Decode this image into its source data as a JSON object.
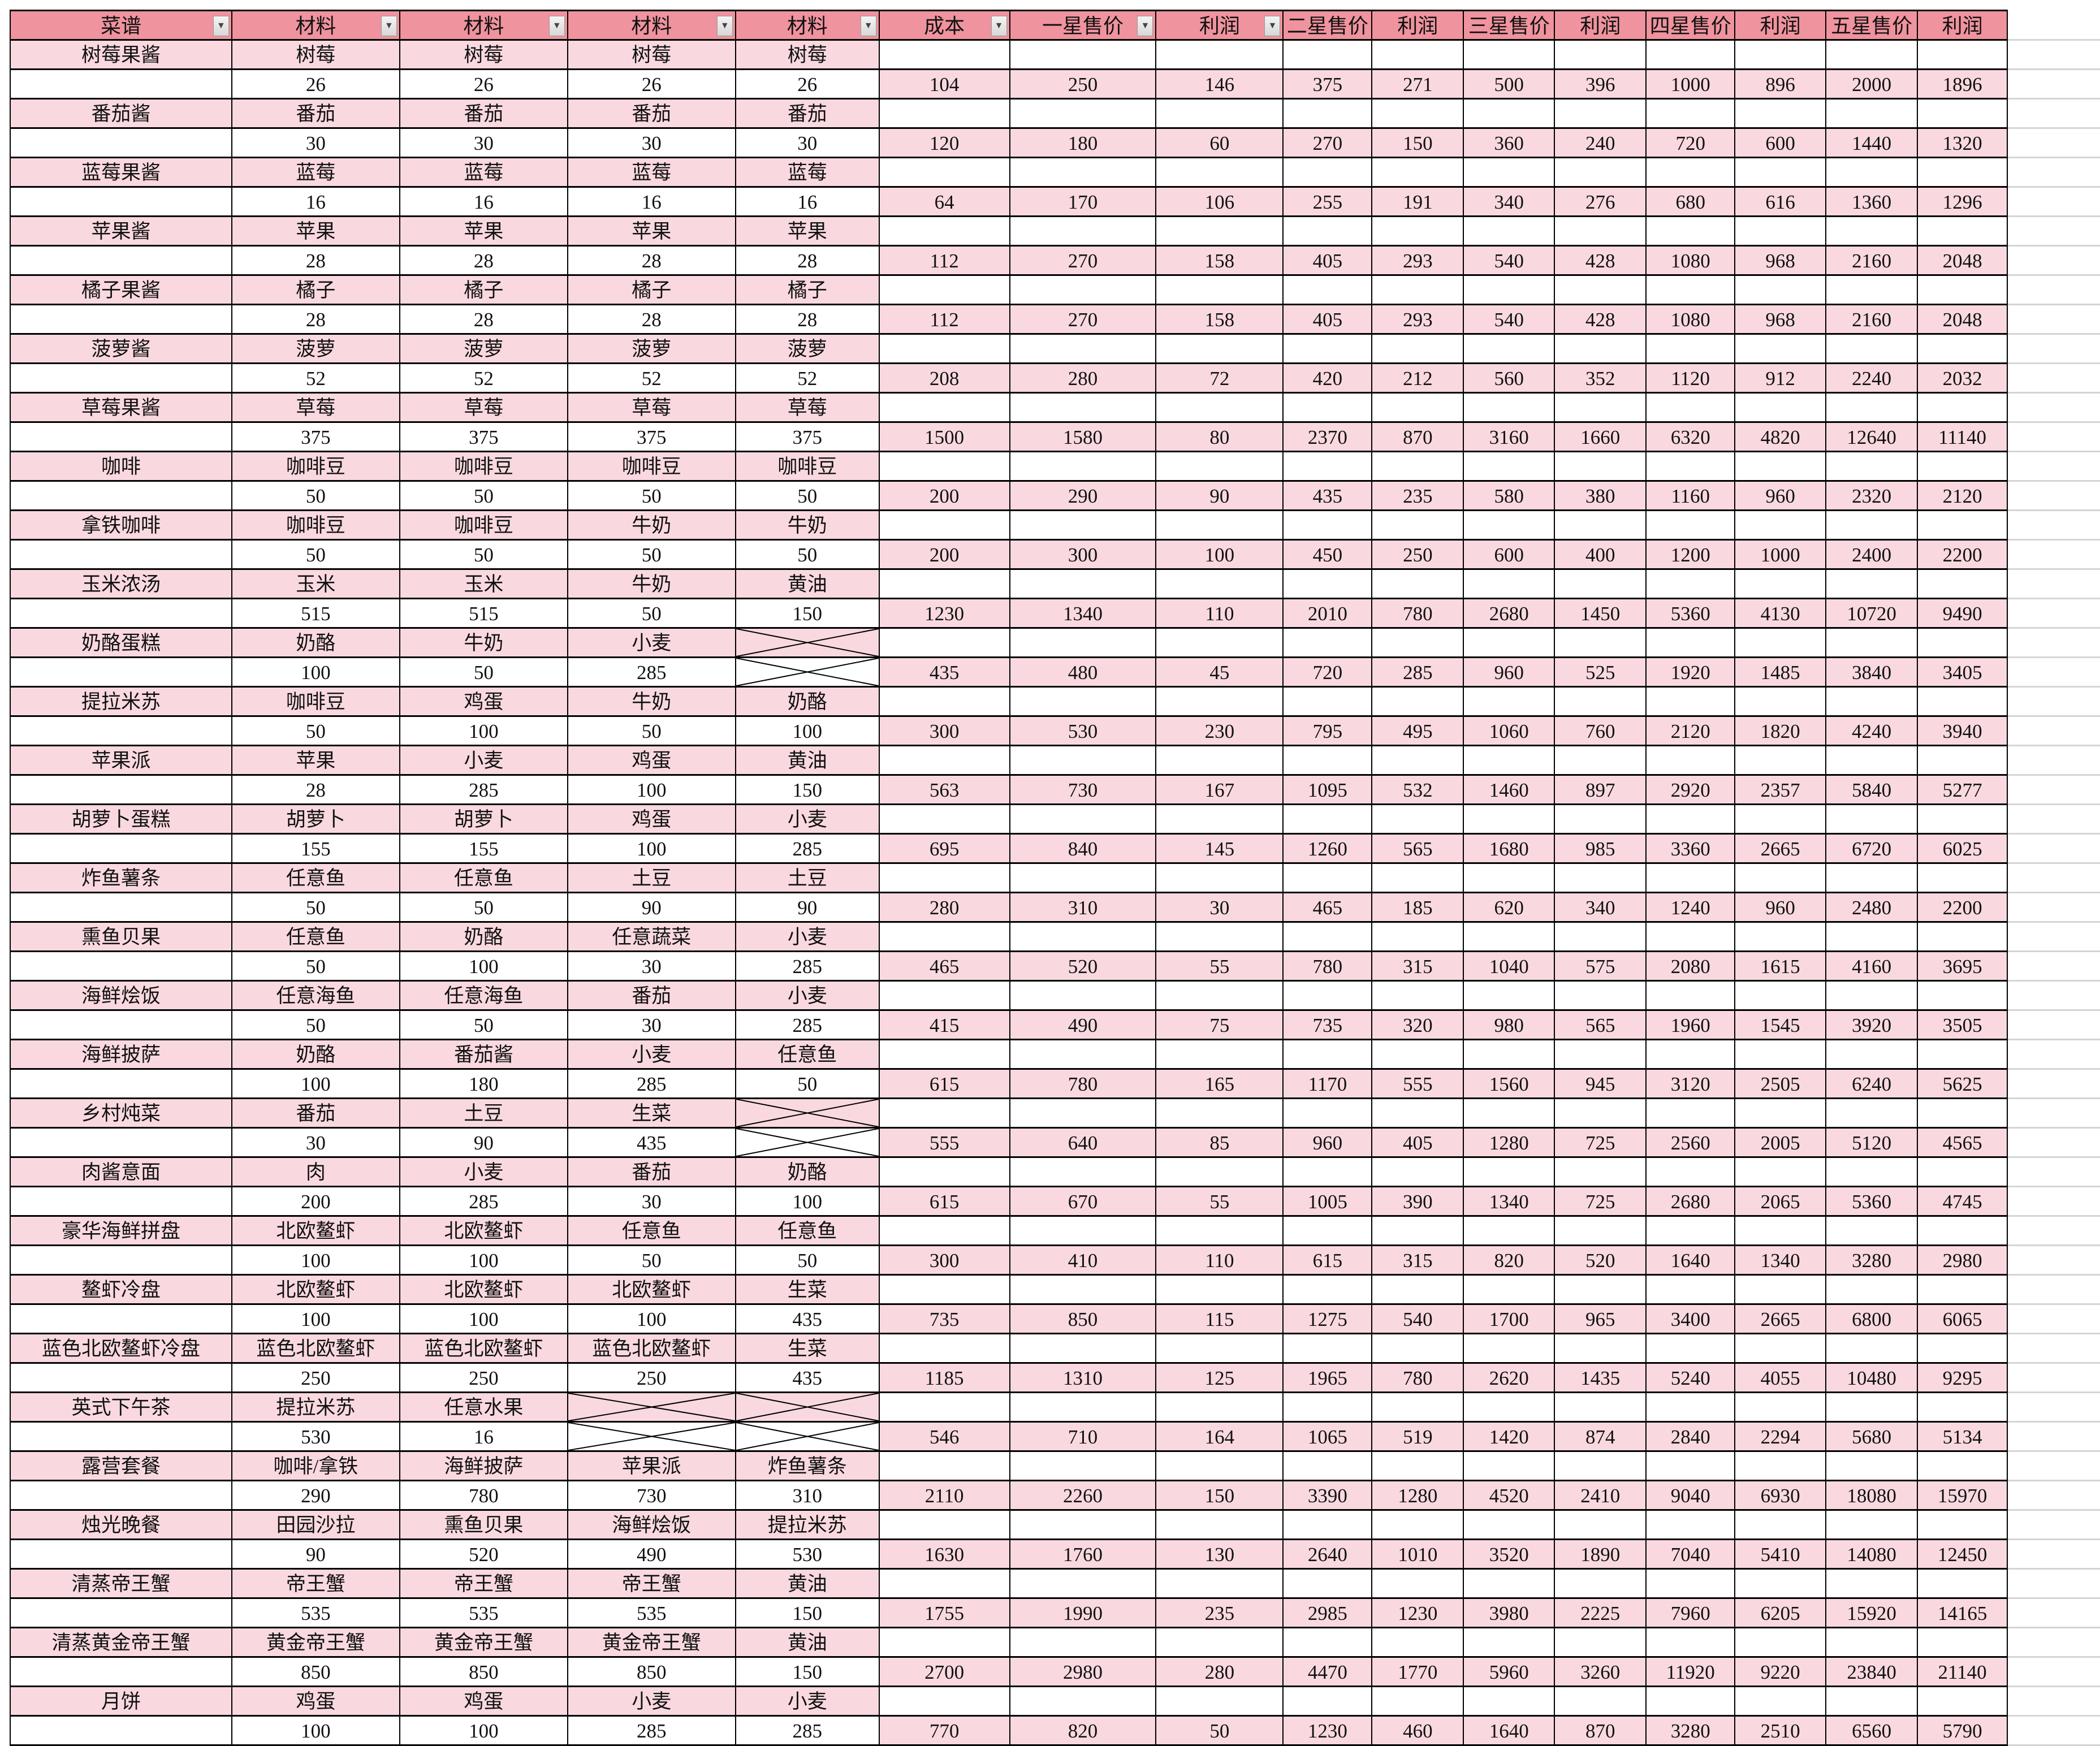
{
  "colors": {
    "header": "#ef939e",
    "row_pink": "#f9d9df",
    "border": "#000000"
  },
  "headers": [
    "菜谱",
    "材料",
    "材料",
    "材料",
    "材料",
    "成本",
    "一星售价",
    "利润",
    "二星售价",
    "利润",
    "三星售价",
    "利润",
    "四星售价",
    "利润",
    "五星售价",
    "利润"
  ],
  "filter_columns": 8,
  "recipes": [
    {
      "name": "树莓果酱",
      "ingredients": [
        "树莓",
        "树莓",
        "树莓",
        "树莓"
      ],
      "quantities": [
        "26",
        "26",
        "26",
        "26"
      ],
      "values": [
        "104",
        "250",
        "146",
        "375",
        "271",
        "500",
        "396",
        "1000",
        "896",
        "2000",
        "1896"
      ]
    },
    {
      "name": "番茄酱",
      "ingredients": [
        "番茄",
        "番茄",
        "番茄",
        "番茄"
      ],
      "quantities": [
        "30",
        "30",
        "30",
        "30"
      ],
      "values": [
        "120",
        "180",
        "60",
        "270",
        "150",
        "360",
        "240",
        "720",
        "600",
        "1440",
        "1320"
      ]
    },
    {
      "name": "蓝莓果酱",
      "ingredients": [
        "蓝莓",
        "蓝莓",
        "蓝莓",
        "蓝莓"
      ],
      "quantities": [
        "16",
        "16",
        "16",
        "16"
      ],
      "values": [
        "64",
        "170",
        "106",
        "255",
        "191",
        "340",
        "276",
        "680",
        "616",
        "1360",
        "1296"
      ]
    },
    {
      "name": "苹果酱",
      "ingredients": [
        "苹果",
        "苹果",
        "苹果",
        "苹果"
      ],
      "quantities": [
        "28",
        "28",
        "28",
        "28"
      ],
      "values": [
        "112",
        "270",
        "158",
        "405",
        "293",
        "540",
        "428",
        "1080",
        "968",
        "2160",
        "2048"
      ]
    },
    {
      "name": "橘子果酱",
      "ingredients": [
        "橘子",
        "橘子",
        "橘子",
        "橘子"
      ],
      "quantities": [
        "28",
        "28",
        "28",
        "28"
      ],
      "values": [
        "112",
        "270",
        "158",
        "405",
        "293",
        "540",
        "428",
        "1080",
        "968",
        "2160",
        "2048"
      ]
    },
    {
      "name": "菠萝酱",
      "ingredients": [
        "菠萝",
        "菠萝",
        "菠萝",
        "菠萝"
      ],
      "quantities": [
        "52",
        "52",
        "52",
        "52"
      ],
      "values": [
        "208",
        "280",
        "72",
        "420",
        "212",
        "560",
        "352",
        "1120",
        "912",
        "2240",
        "2032"
      ]
    },
    {
      "name": "草莓果酱",
      "ingredients": [
        "草莓",
        "草莓",
        "草莓",
        "草莓"
      ],
      "quantities": [
        "375",
        "375",
        "375",
        "375"
      ],
      "values": [
        "1500",
        "1580",
        "80",
        "2370",
        "870",
        "3160",
        "1660",
        "6320",
        "4820",
        "12640",
        "11140"
      ]
    },
    {
      "name": "咖啡",
      "ingredients": [
        "咖啡豆",
        "咖啡豆",
        "咖啡豆",
        "咖啡豆"
      ],
      "quantities": [
        "50",
        "50",
        "50",
        "50"
      ],
      "values": [
        "200",
        "290",
        "90",
        "435",
        "235",
        "580",
        "380",
        "1160",
        "960",
        "2320",
        "2120"
      ]
    },
    {
      "name": "拿铁咖啡",
      "ingredients": [
        "咖啡豆",
        "咖啡豆",
        "牛奶",
        "牛奶"
      ],
      "quantities": [
        "50",
        "50",
        "50",
        "50"
      ],
      "values": [
        "200",
        "300",
        "100",
        "450",
        "250",
        "600",
        "400",
        "1200",
        "1000",
        "2400",
        "2200"
      ]
    },
    {
      "name": "玉米浓汤",
      "ingredients": [
        "玉米",
        "玉米",
        "牛奶",
        "黄油"
      ],
      "quantities": [
        "515",
        "515",
        "50",
        "150"
      ],
      "values": [
        "1230",
        "1340",
        "110",
        "2010",
        "780",
        "2680",
        "1450",
        "5360",
        "4130",
        "10720",
        "9490"
      ]
    },
    {
      "name": "奶酪蛋糕",
      "ingredients": [
        "奶酪",
        "牛奶",
        "小麦",
        null
      ],
      "quantities": [
        "100",
        "50",
        "285",
        null
      ],
      "values": [
        "435",
        "480",
        "45",
        "720",
        "285",
        "960",
        "525",
        "1920",
        "1485",
        "3840",
        "3405"
      ]
    },
    {
      "name": "提拉米苏",
      "ingredients": [
        "咖啡豆",
        "鸡蛋",
        "牛奶",
        "奶酪"
      ],
      "quantities": [
        "50",
        "100",
        "50",
        "100"
      ],
      "values": [
        "300",
        "530",
        "230",
        "795",
        "495",
        "1060",
        "760",
        "2120",
        "1820",
        "4240",
        "3940"
      ]
    },
    {
      "name": "苹果派",
      "ingredients": [
        "苹果",
        "小麦",
        "鸡蛋",
        "黄油"
      ],
      "quantities": [
        "28",
        "285",
        "100",
        "150"
      ],
      "values": [
        "563",
        "730",
        "167",
        "1095",
        "532",
        "1460",
        "897",
        "2920",
        "2357",
        "5840",
        "5277"
      ]
    },
    {
      "name": "胡萝卜蛋糕",
      "ingredients": [
        "胡萝卜",
        "胡萝卜",
        "鸡蛋",
        "小麦"
      ],
      "quantities": [
        "155",
        "155",
        "100",
        "285"
      ],
      "values": [
        "695",
        "840",
        "145",
        "1260",
        "565",
        "1680",
        "985",
        "3360",
        "2665",
        "6720",
        "6025"
      ]
    },
    {
      "name": "炸鱼薯条",
      "ingredients": [
        "任意鱼",
        "任意鱼",
        "土豆",
        "土豆"
      ],
      "quantities": [
        "50",
        "50",
        "90",
        "90"
      ],
      "values": [
        "280",
        "310",
        "30",
        "465",
        "185",
        "620",
        "340",
        "1240",
        "960",
        "2480",
        "2200"
      ]
    },
    {
      "name": "熏鱼贝果",
      "ingredients": [
        "任意鱼",
        "奶酪",
        "任意蔬菜",
        "小麦"
      ],
      "quantities": [
        "50",
        "100",
        "30",
        "285"
      ],
      "values": [
        "465",
        "520",
        "55",
        "780",
        "315",
        "1040",
        "575",
        "2080",
        "1615",
        "4160",
        "3695"
      ]
    },
    {
      "name": "海鲜烩饭",
      "ingredients": [
        "任意海鱼",
        "任意海鱼",
        "番茄",
        "小麦"
      ],
      "quantities": [
        "50",
        "50",
        "30",
        "285"
      ],
      "values": [
        "415",
        "490",
        "75",
        "735",
        "320",
        "980",
        "565",
        "1960",
        "1545",
        "3920",
        "3505"
      ]
    },
    {
      "name": "海鲜披萨",
      "ingredients": [
        "奶酪",
        "番茄酱",
        "小麦",
        "任意鱼"
      ],
      "quantities": [
        "100",
        "180",
        "285",
        "50"
      ],
      "values": [
        "615",
        "780",
        "165",
        "1170",
        "555",
        "1560",
        "945",
        "3120",
        "2505",
        "6240",
        "5625"
      ]
    },
    {
      "name": "乡村炖菜",
      "ingredients": [
        "番茄",
        "土豆",
        "生菜",
        null
      ],
      "quantities": [
        "30",
        "90",
        "435",
        null
      ],
      "values": [
        "555",
        "640",
        "85",
        "960",
        "405",
        "1280",
        "725",
        "2560",
        "2005",
        "5120",
        "4565"
      ]
    },
    {
      "name": "肉酱意面",
      "ingredients": [
        "肉",
        "小麦",
        "番茄",
        "奶酪"
      ],
      "quantities": [
        "200",
        "285",
        "30",
        "100"
      ],
      "values": [
        "615",
        "670",
        "55",
        "1005",
        "390",
        "1340",
        "725",
        "2680",
        "2065",
        "5360",
        "4745"
      ]
    },
    {
      "name": "豪华海鲜拼盘",
      "ingredients": [
        "北欧鳌虾",
        "北欧鳌虾",
        "任意鱼",
        "任意鱼"
      ],
      "quantities": [
        "100",
        "100",
        "50",
        "50"
      ],
      "values": [
        "300",
        "410",
        "110",
        "615",
        "315",
        "820",
        "520",
        "1640",
        "1340",
        "3280",
        "2980"
      ]
    },
    {
      "name": "鳌虾冷盘",
      "ingredients": [
        "北欧鳌虾",
        "北欧鳌虾",
        "北欧鳌虾",
        "生菜"
      ],
      "quantities": [
        "100",
        "100",
        "100",
        "435"
      ],
      "values": [
        "735",
        "850",
        "115",
        "1275",
        "540",
        "1700",
        "965",
        "3400",
        "2665",
        "6800",
        "6065"
      ]
    },
    {
      "name": "蓝色北欧鳌虾冷盘",
      "ingredients": [
        "蓝色北欧鳌虾",
        "蓝色北欧鳌虾",
        "蓝色北欧鳌虾",
        "生菜"
      ],
      "quantities": [
        "250",
        "250",
        "250",
        "435"
      ],
      "values": [
        "1185",
        "1310",
        "125",
        "1965",
        "780",
        "2620",
        "1435",
        "5240",
        "4055",
        "10480",
        "9295"
      ]
    },
    {
      "name": "英式下午茶",
      "ingredients": [
        "提拉米苏",
        "任意水果",
        null,
        null
      ],
      "quantities": [
        "530",
        "16",
        null,
        null
      ],
      "values": [
        "546",
        "710",
        "164",
        "1065",
        "519",
        "1420",
        "874",
        "2840",
        "2294",
        "5680",
        "5134"
      ]
    },
    {
      "name": "露营套餐",
      "ingredients": [
        "咖啡/拿铁",
        "海鲜披萨",
        "苹果派",
        "炸鱼薯条"
      ],
      "quantities": [
        "290",
        "780",
        "730",
        "310"
      ],
      "values": [
        "2110",
        "2260",
        "150",
        "3390",
        "1280",
        "4520",
        "2410",
        "9040",
        "6930",
        "18080",
        "15970"
      ]
    },
    {
      "name": "烛光晚餐",
      "ingredients": [
        "田园沙拉",
        "熏鱼贝果",
        "海鲜烩饭",
        "提拉米苏"
      ],
      "quantities": [
        "90",
        "520",
        "490",
        "530"
      ],
      "values": [
        "1630",
        "1760",
        "130",
        "2640",
        "1010",
        "3520",
        "1890",
        "7040",
        "5410",
        "14080",
        "12450"
      ]
    },
    {
      "name": "清蒸帝王蟹",
      "ingredients": [
        "帝王蟹",
        "帝王蟹",
        "帝王蟹",
        "黄油"
      ],
      "quantities": [
        "535",
        "535",
        "535",
        "150"
      ],
      "values": [
        "1755",
        "1990",
        "235",
        "2985",
        "1230",
        "3980",
        "2225",
        "7960",
        "6205",
        "15920",
        "14165"
      ]
    },
    {
      "name": "清蒸黄金帝王蟹",
      "ingredients": [
        "黄金帝王蟹",
        "黄金帝王蟹",
        "黄金帝王蟹",
        "黄油"
      ],
      "quantities": [
        "850",
        "850",
        "850",
        "150"
      ],
      "values": [
        "2700",
        "2980",
        "280",
        "4470",
        "1770",
        "5960",
        "3260",
        "11920",
        "9220",
        "23840",
        "21140"
      ]
    },
    {
      "name": "月饼",
      "ingredients": [
        "鸡蛋",
        "鸡蛋",
        "小麦",
        "小麦"
      ],
      "quantities": [
        "100",
        "100",
        "285",
        "285"
      ],
      "values": [
        "770",
        "820",
        "50",
        "1230",
        "460",
        "1640",
        "870",
        "3280",
        "2510",
        "6560",
        "5790"
      ]
    }
  ]
}
